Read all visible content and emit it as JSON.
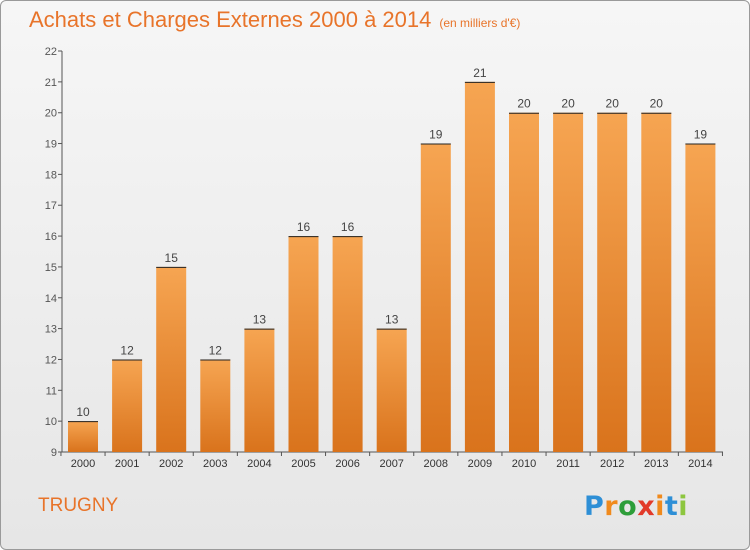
{
  "title": "Achats et Charges Externes 2000 à 2014",
  "subtitle": "(en milliers d'€)",
  "city": "TRUGNY",
  "logo": {
    "letters": [
      "P",
      "r",
      "o",
      "x",
      "i",
      "t",
      "i"
    ],
    "colors": [
      "#2e8fd6",
      "#f08a1c",
      "#2e9e3a",
      "#e23a2a",
      "#f08a1c",
      "#2e8fd6",
      "#8dc63f"
    ]
  },
  "colors": {
    "accent": "#e8742a",
    "bar_top": "#f6a552",
    "bar_bottom": "#d9731c",
    "label": "#444444"
  },
  "chart_data": {
    "type": "bar",
    "categories": [
      "2000",
      "2001",
      "2002",
      "2003",
      "2004",
      "2005",
      "2006",
      "2007",
      "2008",
      "2009",
      "2010",
      "2011",
      "2012",
      "2013",
      "2014"
    ],
    "values": [
      10,
      12,
      15,
      12,
      13,
      16,
      16,
      13,
      19,
      21,
      20,
      20,
      20,
      20,
      19
    ],
    "data_labels": [
      "10",
      "12",
      "15",
      "12",
      "13",
      "16",
      "16",
      "13",
      "19",
      "21",
      "20",
      "20",
      "20",
      "20",
      "19"
    ],
    "y_ticks": [
      "9",
      "10",
      "11",
      "12",
      "13",
      "14",
      "15",
      "16",
      "17",
      "18",
      "19",
      "20",
      "21",
      "22"
    ],
    "ylim": [
      9,
      22
    ],
    "grid": false,
    "legend": "none"
  }
}
